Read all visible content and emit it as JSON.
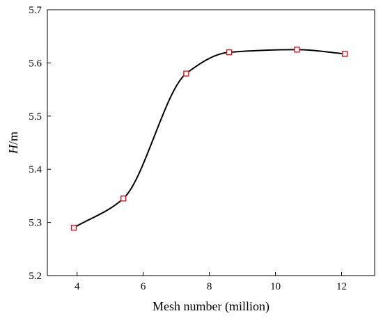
{
  "chart_data": {
    "type": "line",
    "title": "",
    "xlabel": "Mesh number (million)",
    "ylabel_italic": "H",
    "ylabel_unit": "/m",
    "xlim": [
      3.1,
      13
    ],
    "ylim": [
      5.2,
      5.7
    ],
    "xticks": [
      4,
      6,
      8,
      10,
      12
    ],
    "yticks": [
      5.2,
      5.3,
      5.4,
      5.5,
      5.6,
      5.7
    ],
    "xtick_labels": [
      "4",
      "6",
      "8",
      "10",
      "12"
    ],
    "ytick_labels": [
      "5.2",
      "5.3",
      "5.4",
      "5.5",
      "5.6",
      "5.7"
    ],
    "grid": false,
    "smooth": true,
    "series": [
      {
        "x": [
          3.9,
          5.4,
          7.3,
          8.6,
          10.65,
          12.1
        ],
        "y": [
          5.29,
          5.345,
          5.58,
          5.62,
          5.625,
          5.617
        ],
        "line_color": "#000000",
        "marker": "square",
        "marker_color": "#e0101a"
      }
    ]
  }
}
